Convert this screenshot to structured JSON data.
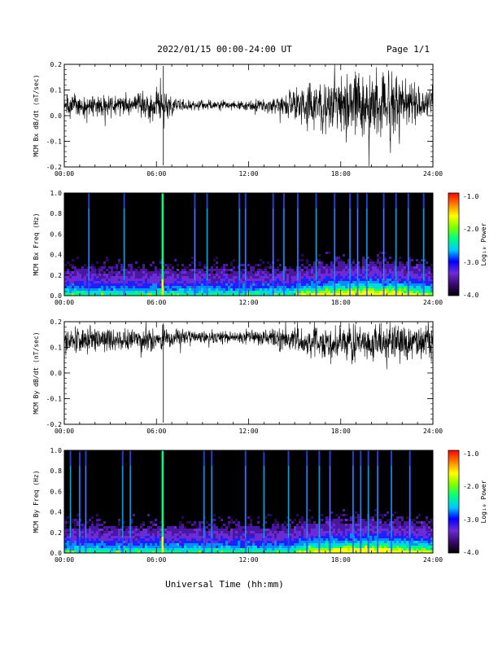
{
  "header": {
    "title": "2022/01/15  00:00-24:00 UT",
    "page": "Page 1/1"
  },
  "colorbar": {
    "label": "Log₁₀ Power",
    "ticks": [
      "-1.0",
      "-2.0",
      "-3.0",
      "-4.0"
    ],
    "colors": [
      "#000000",
      "#3a0a6e",
      "#6d2bd6",
      "#0000ff",
      "#00c8ff",
      "#00ff80",
      "#7fff00",
      "#ffff00",
      "#ff8000",
      "#ff0000"
    ]
  },
  "x_axis": {
    "label": "Universal Time (hh:mm)",
    "ticks": [
      "00:00",
      "06:00",
      "12:00",
      "18:00",
      "24:00"
    ]
  },
  "chart_data": [
    {
      "type": "line",
      "ylabel": "MCM Bx dB/dt (nT/sec)",
      "xlim": [
        0,
        24
      ],
      "ylim": [
        -0.2,
        0.2
      ],
      "yticks": [
        "0.2",
        "0.1",
        "0.0",
        "-0.1",
        "-0.2"
      ],
      "color": "#000000",
      "envelope": {
        "x_hours": [
          0,
          2,
          4,
          6,
          8,
          10,
          12,
          13,
          14,
          15,
          16,
          17,
          18,
          19,
          20,
          21,
          22,
          23,
          24
        ],
        "center": [
          0.04,
          0.04,
          0.04,
          0.04,
          0.04,
          0.04,
          0.04,
          0.04,
          0.04,
          0.04,
          0.04,
          0.04,
          0.04,
          0.04,
          0.04,
          0.04,
          0.04,
          0.04,
          0.04
        ],
        "amplitude": [
          0.07,
          0.06,
          0.06,
          0.08,
          0.03,
          0.025,
          0.03,
          0.04,
          0.06,
          0.08,
          0.12,
          0.14,
          0.2,
          0.2,
          0.2,
          0.18,
          0.15,
          0.13,
          0.1
        ]
      }
    },
    {
      "type": "heatmap",
      "ylabel": "MCM Bx Freq (Hz)",
      "xlim": [
        0,
        24
      ],
      "ylim": [
        0,
        1.0
      ],
      "yticks": [
        "1.0",
        "0.8",
        "0.6",
        "0.4",
        "0.2",
        "0.0"
      ],
      "zlim": [
        -4.0,
        -1.0
      ],
      "spikes_hours": [
        1.6,
        3.9,
        6.4,
        8.5,
        9.3,
        11.4,
        11.8,
        13.6,
        14.3,
        15.2,
        16.4,
        17.6,
        18.6,
        19.1,
        19.7,
        20.8,
        21.6,
        22.4,
        23.4
      ]
    },
    {
      "type": "line",
      "ylabel": "MCM By dB/dt (nT/sec)",
      "xlim": [
        0,
        24
      ],
      "ylim": [
        -0.2,
        0.2
      ],
      "yticks": [
        "0.2",
        "0.1",
        "0.0",
        "-0.1",
        "-0.2"
      ],
      "color": "#000000",
      "envelope": {
        "x_hours": [
          0,
          2,
          4,
          6,
          8,
          10,
          12,
          13,
          14,
          15,
          16,
          17,
          18,
          19,
          20,
          21,
          22,
          23,
          24
        ],
        "center": [
          0.13,
          0.13,
          0.13,
          0.13,
          0.14,
          0.14,
          0.14,
          0.14,
          0.13,
          0.13,
          0.12,
          0.12,
          0.12,
          0.12,
          0.12,
          0.12,
          0.12,
          0.12,
          0.12
        ],
        "amplitude": [
          0.08,
          0.07,
          0.07,
          0.07,
          0.04,
          0.03,
          0.04,
          0.05,
          0.06,
          0.07,
          0.08,
          0.09,
          0.1,
          0.1,
          0.1,
          0.1,
          0.1,
          0.1,
          0.1
        ]
      }
    },
    {
      "type": "heatmap",
      "ylabel": "MCM By Freq (Hz)",
      "xlim": [
        0,
        24
      ],
      "ylim": [
        0,
        1.0
      ],
      "yticks": [
        "1.0",
        "0.8",
        "0.6",
        "0.4",
        "0.2",
        "0.0"
      ],
      "zlim": [
        -4.0,
        -1.0
      ],
      "spikes_hours": [
        0.4,
        1.0,
        1.4,
        3.8,
        4.3,
        6.4,
        9.1,
        9.6,
        11.8,
        13.0,
        14.6,
        15.8,
        16.6,
        17.3,
        18.8,
        19.3,
        19.8,
        20.4,
        21.3,
        22.5
      ]
    }
  ]
}
